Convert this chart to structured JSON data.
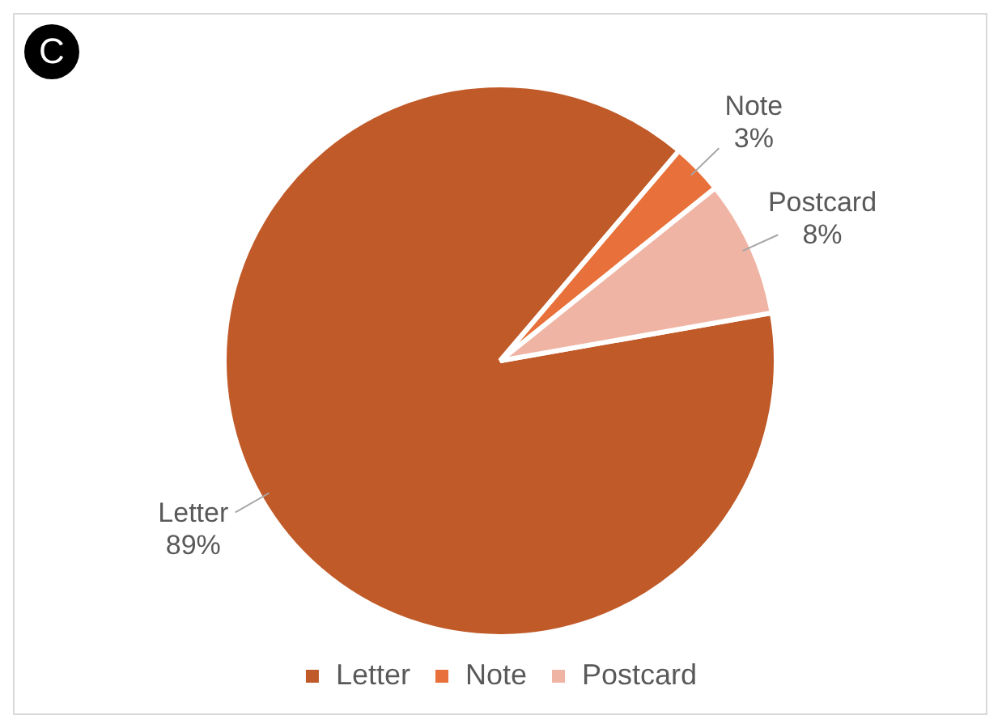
{
  "chart_data": {
    "type": "pie",
    "categories": [
      "Letter",
      "Note",
      "Postcard"
    ],
    "values": [
      89,
      3,
      8
    ],
    "colors": [
      "#c05a28",
      "#e8703a",
      "#f0b4a4"
    ],
    "value_labels": [
      "89%",
      "3%",
      "8%"
    ],
    "legend": "bottom",
    "annotations": [
      "C"
    ]
  }
}
